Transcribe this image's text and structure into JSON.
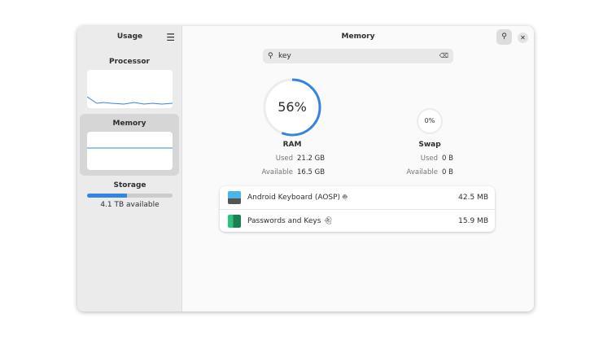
{
  "sidebar": {
    "title": "Usage",
    "menu_icon": "hamburger-menu-icon",
    "processor": {
      "label": "Processor"
    },
    "memory": {
      "label": "Memory"
    },
    "storage": {
      "label": "Storage",
      "available": "4.1 TB available",
      "used_fraction": 0.47
    }
  },
  "header": {
    "title": "Memory",
    "search_icon": "search-icon",
    "close_icon": "close-icon"
  },
  "search": {
    "value": "key"
  },
  "ram": {
    "percent": "56%",
    "fraction": 0.56,
    "label": "RAM",
    "used_label": "Used",
    "used": "21.2 GB",
    "available_label": "Available",
    "available": "16.5 GB"
  },
  "swap": {
    "percent": "0%",
    "fraction": 0,
    "label": "Swap",
    "used_label": "Used",
    "used": "0 B",
    "available_label": "Available",
    "available": "0 B"
  },
  "apps": [
    {
      "name": "Android Keyboard (AOSP)",
      "badge": "android-icon",
      "memory": "42.5 MB"
    },
    {
      "name": "Passwords and Keys",
      "badge": "ghost-icon",
      "memory": "15.9 MB"
    }
  ],
  "colors": {
    "accent": "#3584e4"
  }
}
